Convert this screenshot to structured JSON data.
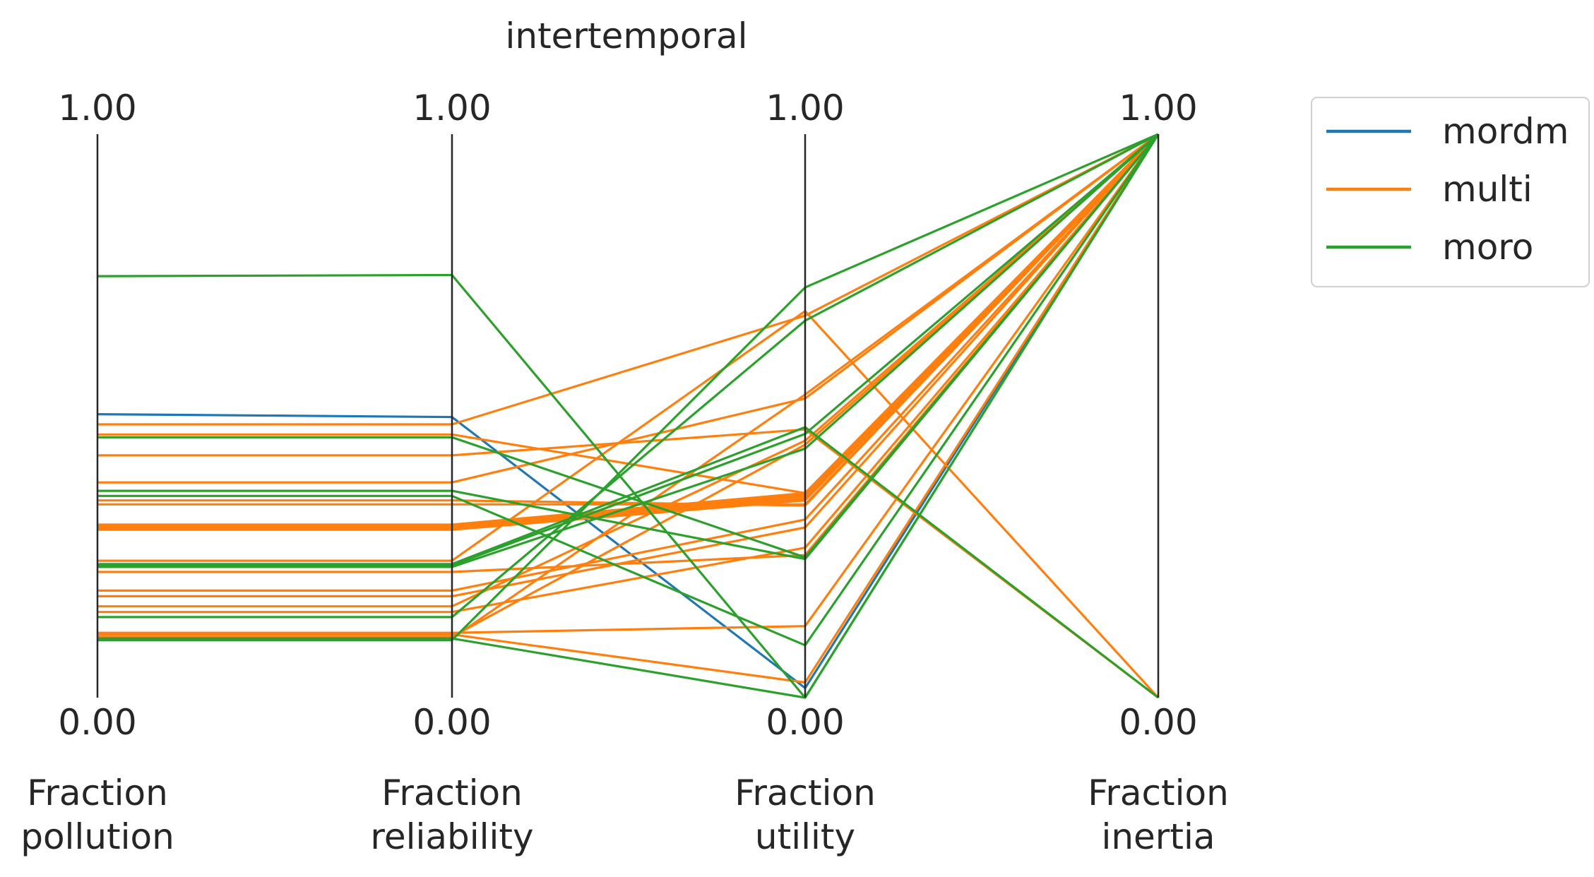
{
  "chart_data": {
    "type": "parallel-coordinates",
    "title": "intertemporal",
    "axes": [
      {
        "label": [
          "Fraction",
          "pollution"
        ],
        "max_label": "1.00",
        "min_label": "0.00"
      },
      {
        "label": [
          "Fraction",
          "reliability"
        ],
        "max_label": "1.00",
        "min_label": "0.00"
      },
      {
        "label": [
          "Fraction",
          "utility"
        ],
        "max_label": "1.00",
        "min_label": "0.00"
      },
      {
        "label": [
          "Fraction",
          "inertia"
        ],
        "max_label": "1.00",
        "min_label": "0.00"
      }
    ],
    "range": [
      0,
      1
    ],
    "legend": {
      "placement": "upper-right-outside",
      "entries": [
        {
          "name": "mordm",
          "color": "#1f77b4"
        },
        {
          "name": "multi",
          "color": "#ff7f0e"
        },
        {
          "name": "moro",
          "color": "#2ca02c"
        }
      ]
    },
    "series": [
      {
        "name": "mordm",
        "color": "#1f77b4",
        "lines": [
          [
            0.503,
            0.498,
            0.017,
            1.0
          ]
        ]
      },
      {
        "name": "multi",
        "color": "#ff7f0e",
        "lines": [
          [
            0.485,
            0.485,
            0.678,
            1.0
          ],
          [
            0.467,
            0.467,
            0.363,
            1.0
          ],
          [
            0.43,
            0.43,
            0.476,
            0.0
          ],
          [
            0.382,
            0.382,
            0.531,
            1.0
          ],
          [
            0.35,
            0.35,
            0.341,
            1.0
          ],
          [
            0.343,
            0.343,
            0.343,
            1.0
          ],
          [
            0.307,
            0.307,
            0.363,
            1.0
          ],
          [
            0.305,
            0.305,
            0.36,
            1.0
          ],
          [
            0.302,
            0.302,
            0.357,
            1.0
          ],
          [
            0.3,
            0.3,
            0.353,
            1.0
          ],
          [
            0.298,
            0.298,
            0.35,
            1.0
          ],
          [
            0.243,
            0.243,
            0.686,
            0.0
          ],
          [
            0.223,
            0.223,
            0.253,
            1.0
          ],
          [
            0.19,
            0.19,
            0.316,
            1.0
          ],
          [
            0.18,
            0.18,
            0.302,
            1.0
          ],
          [
            0.162,
            0.162,
            0.456,
            1.0
          ],
          [
            0.152,
            0.152,
            0.266,
            1.0
          ],
          [
            0.115,
            0.115,
            0.127,
            1.0
          ],
          [
            0.112,
            0.112,
            0.027,
            1.0
          ],
          [
            0.108,
            0.108,
            0.449,
            1.0
          ],
          [
            0.105,
            0.105,
            0.538,
            1.0
          ]
        ]
      },
      {
        "name": "moro",
        "color": "#2ca02c",
        "lines": [
          [
            0.748,
            0.75,
            0.0,
            1.0
          ],
          [
            0.462,
            0.462,
            0.249,
            1.0
          ],
          [
            0.367,
            0.367,
            0.246,
            1.0
          ],
          [
            0.237,
            0.237,
            0.48,
            0.0
          ],
          [
            0.235,
            0.235,
            0.468,
            1.0
          ],
          [
            0.143,
            0.143,
            0.669,
            1.0
          ],
          [
            0.102,
            0.102,
            0.728,
            1.0
          ],
          [
            0.105,
            0.105,
            0.0,
            1.0
          ],
          [
            0.232,
            0.232,
            0.442,
            1.0
          ],
          [
            0.358,
            0.358,
            0.093,
            1.0
          ]
        ]
      }
    ]
  }
}
